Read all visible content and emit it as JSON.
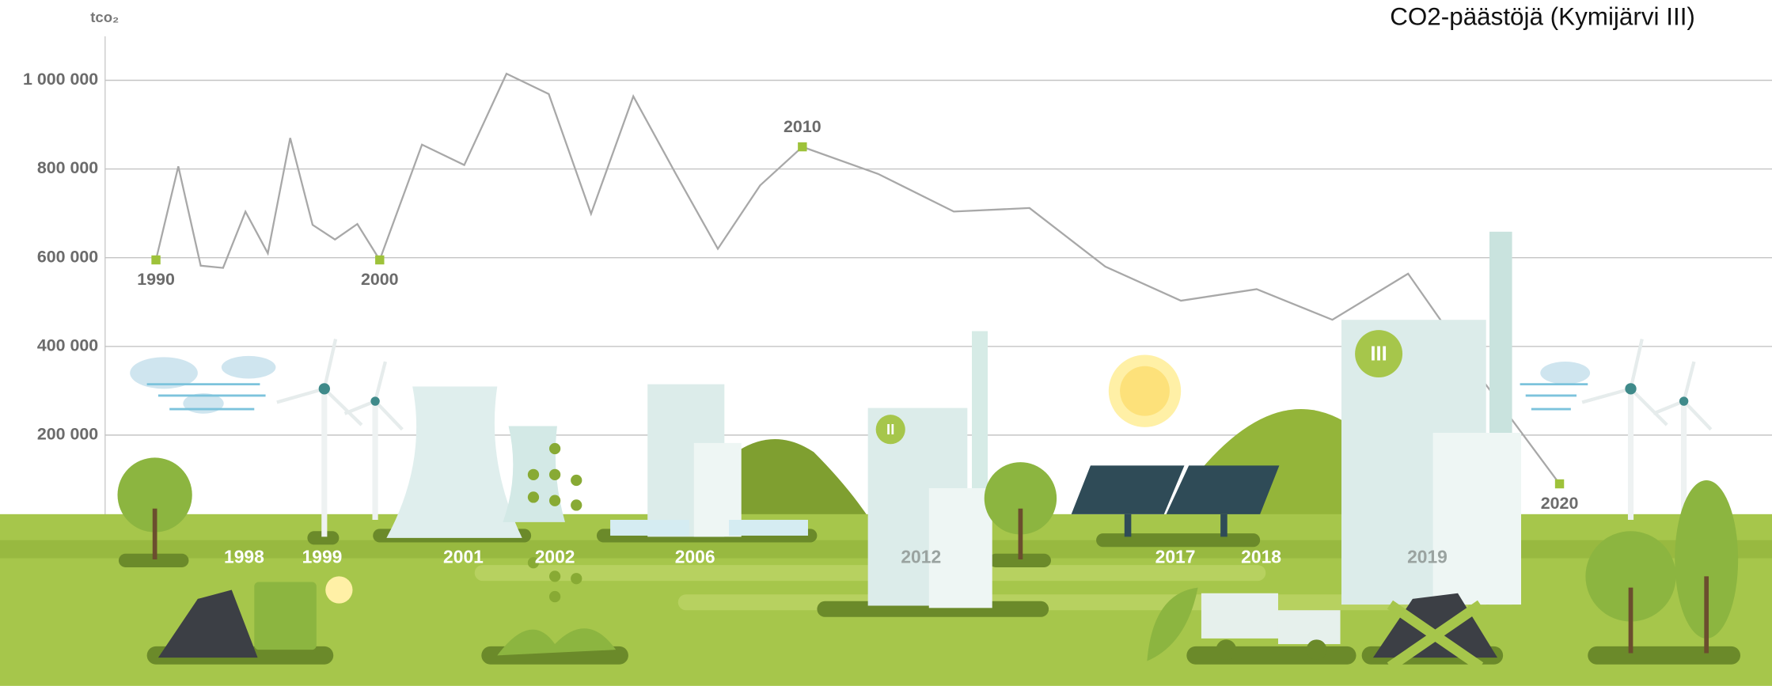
{
  "chart_data": {
    "type": "line",
    "title": "CO2-päästöjä (Kymijärvi III)",
    "y_label": "tco₂",
    "categories": [
      "1990",
      null,
      null,
      null,
      null,
      null,
      null,
      null,
      null,
      null,
      "2000",
      null,
      null,
      null,
      null,
      null,
      null,
      null,
      null,
      null,
      "2010",
      null,
      null,
      null,
      null,
      null,
      null,
      null,
      null,
      null,
      "2020"
    ],
    "series": [
      {
        "color": "#a8a8a8",
        "values": [
          595000,
          806000,
          582000,
          577000,
          704000,
          610000,
          870000,
          674000,
          641000,
          676000,
          595000,
          855000,
          809000,
          1015000,
          969000,
          699000,
          964000,
          790000,
          620000,
          763000,
          850000,
          789000,
          704000,
          712000,
          580000,
          503000,
          529000,
          460000,
          564000,
          320000,
          90000
        ]
      }
    ],
    "ylim": [
      0,
      1100000
    ],
    "yticks": [
      {
        "value": 200000,
        "label": "200 000"
      },
      {
        "value": 400000,
        "label": "400 000"
      },
      {
        "value": 600000,
        "label": "600 000"
      },
      {
        "value": 800000,
        "label": "800 000"
      },
      {
        "value": 1000000,
        "label": "1 000 000"
      }
    ],
    "grid": true,
    "marker_color": "#9ec23a"
  },
  "illustration": {
    "years": [
      "1998",
      "1999",
      "2001",
      "2002",
      "2006",
      "2012",
      "2017",
      "2018",
      "2019"
    ],
    "plant_labels": [
      "II",
      "III"
    ]
  }
}
